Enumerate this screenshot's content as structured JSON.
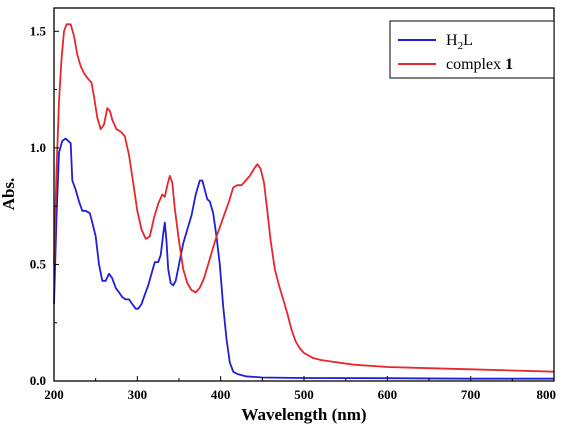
{
  "chart_data": {
    "type": "line",
    "xlabel": "Wavelength (nm)",
    "ylabel": "Abs.",
    "xlim": [
      200,
      800
    ],
    "ylim": [
      0,
      1.6
    ],
    "x_ticks": [
      200,
      300,
      400,
      500,
      600,
      700,
      800
    ],
    "y_ticks": [
      0.0,
      0.5,
      1.0,
      1.5
    ],
    "x_tick_labels": [
      "200",
      "300",
      "400",
      "500",
      "600",
      "700",
      "800"
    ],
    "y_tick_labels": [
      "0.0",
      "0.5",
      "1.0",
      "1.5"
    ],
    "grid": false,
    "legend_position": "top-right",
    "legend": [
      {
        "base": "H",
        "sub": "2",
        "tail": "L",
        "color": "#1f1fd6"
      },
      {
        "base": "complex ",
        "bold": "1",
        "color": "#e8262b"
      }
    ],
    "series": [
      {
        "color": "#1f1fd6",
        "points": [
          [
            200,
            0.33
          ],
          [
            203,
            0.7
          ],
          [
            206,
            0.98
          ],
          [
            210,
            1.03
          ],
          [
            214,
            1.04
          ],
          [
            217,
            1.03
          ],
          [
            220,
            1.02
          ],
          [
            222,
            0.86
          ],
          [
            226,
            0.82
          ],
          [
            230,
            0.77
          ],
          [
            234,
            0.73
          ],
          [
            238,
            0.73
          ],
          [
            243,
            0.72
          ],
          [
            246,
            0.68
          ],
          [
            250,
            0.62
          ],
          [
            254,
            0.5
          ],
          [
            258,
            0.43
          ],
          [
            262,
            0.43
          ],
          [
            266,
            0.46
          ],
          [
            270,
            0.44
          ],
          [
            274,
            0.4
          ],
          [
            278,
            0.38
          ],
          [
            282,
            0.36
          ],
          [
            286,
            0.35
          ],
          [
            290,
            0.35
          ],
          [
            294,
            0.33
          ],
          [
            298,
            0.31
          ],
          [
            301,
            0.31
          ],
          [
            305,
            0.33
          ],
          [
            309,
            0.37
          ],
          [
            313,
            0.41
          ],
          [
            317,
            0.46
          ],
          [
            321,
            0.51
          ],
          [
            325,
            0.51
          ],
          [
            328,
            0.54
          ],
          [
            331,
            0.63
          ],
          [
            333,
            0.68
          ],
          [
            335,
            0.6
          ],
          [
            337,
            0.48
          ],
          [
            340,
            0.42
          ],
          [
            343,
            0.41
          ],
          [
            346,
            0.43
          ],
          [
            350,
            0.5
          ],
          [
            355,
            0.59
          ],
          [
            360,
            0.65
          ],
          [
            365,
            0.71
          ],
          [
            370,
            0.8
          ],
          [
            375,
            0.86
          ],
          [
            378,
            0.86
          ],
          [
            381,
            0.82
          ],
          [
            384,
            0.78
          ],
          [
            387,
            0.77
          ],
          [
            391,
            0.72
          ],
          [
            395,
            0.62
          ],
          [
            399,
            0.5
          ],
          [
            403,
            0.32
          ],
          [
            407,
            0.18
          ],
          [
            411,
            0.08
          ],
          [
            415,
            0.04
          ],
          [
            420,
            0.03
          ],
          [
            430,
            0.02
          ],
          [
            450,
            0.015
          ],
          [
            500,
            0.013
          ],
          [
            600,
            0.012
          ],
          [
            700,
            0.01
          ],
          [
            800,
            0.01
          ]
        ]
      },
      {
        "color": "#e8262b",
        "points": [
          [
            200,
            0.5
          ],
          [
            203,
            0.9
          ],
          [
            206,
            1.2
          ],
          [
            209,
            1.38
          ],
          [
            212,
            1.5
          ],
          [
            215,
            1.53
          ],
          [
            220,
            1.53
          ],
          [
            224,
            1.48
          ],
          [
            228,
            1.4
          ],
          [
            232,
            1.35
          ],
          [
            236,
            1.32
          ],
          [
            240,
            1.3
          ],
          [
            245,
            1.28
          ],
          [
            248,
            1.22
          ],
          [
            252,
            1.13
          ],
          [
            256,
            1.08
          ],
          [
            260,
            1.1
          ],
          [
            264,
            1.17
          ],
          [
            267,
            1.16
          ],
          [
            270,
            1.12
          ],
          [
            275,
            1.08
          ],
          [
            280,
            1.07
          ],
          [
            285,
            1.05
          ],
          [
            290,
            0.97
          ],
          [
            295,
            0.85
          ],
          [
            300,
            0.73
          ],
          [
            305,
            0.65
          ],
          [
            310,
            0.61
          ],
          [
            315,
            0.62
          ],
          [
            320,
            0.7
          ],
          [
            325,
            0.76
          ],
          [
            330,
            0.8
          ],
          [
            333,
            0.79
          ],
          [
            336,
            0.84
          ],
          [
            339,
            0.88
          ],
          [
            342,
            0.85
          ],
          [
            345,
            0.74
          ],
          [
            350,
            0.6
          ],
          [
            355,
            0.48
          ],
          [
            360,
            0.42
          ],
          [
            365,
            0.39
          ],
          [
            370,
            0.38
          ],
          [
            375,
            0.4
          ],
          [
            380,
            0.44
          ],
          [
            385,
            0.5
          ],
          [
            390,
            0.56
          ],
          [
            395,
            0.62
          ],
          [
            400,
            0.67
          ],
          [
            405,
            0.72
          ],
          [
            410,
            0.77
          ],
          [
            415,
            0.83
          ],
          [
            420,
            0.84
          ],
          [
            425,
            0.84
          ],
          [
            430,
            0.86
          ],
          [
            435,
            0.88
          ],
          [
            440,
            0.91
          ],
          [
            444,
            0.93
          ],
          [
            448,
            0.91
          ],
          [
            452,
            0.85
          ],
          [
            456,
            0.73
          ],
          [
            460,
            0.6
          ],
          [
            465,
            0.48
          ],
          [
            470,
            0.41
          ],
          [
            475,
            0.35
          ],
          [
            480,
            0.29
          ],
          [
            485,
            0.22
          ],
          [
            490,
            0.17
          ],
          [
            495,
            0.14
          ],
          [
            500,
            0.12
          ],
          [
            510,
            0.1
          ],
          [
            520,
            0.09
          ],
          [
            540,
            0.08
          ],
          [
            560,
            0.07
          ],
          [
            600,
            0.06
          ],
          [
            650,
            0.055
          ],
          [
            700,
            0.05
          ],
          [
            750,
            0.045
          ],
          [
            800,
            0.04
          ]
        ]
      }
    ]
  }
}
